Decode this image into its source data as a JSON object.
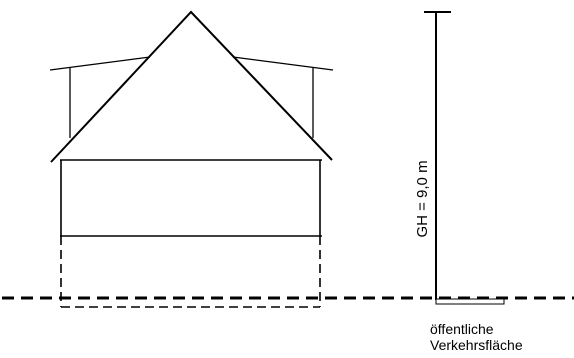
{
  "drawing": {
    "height_label": "GH = 9,0 m",
    "public_area_label": {
      "line1": "öffentliche",
      "line2": "Verkehrsfläche"
    }
  }
}
